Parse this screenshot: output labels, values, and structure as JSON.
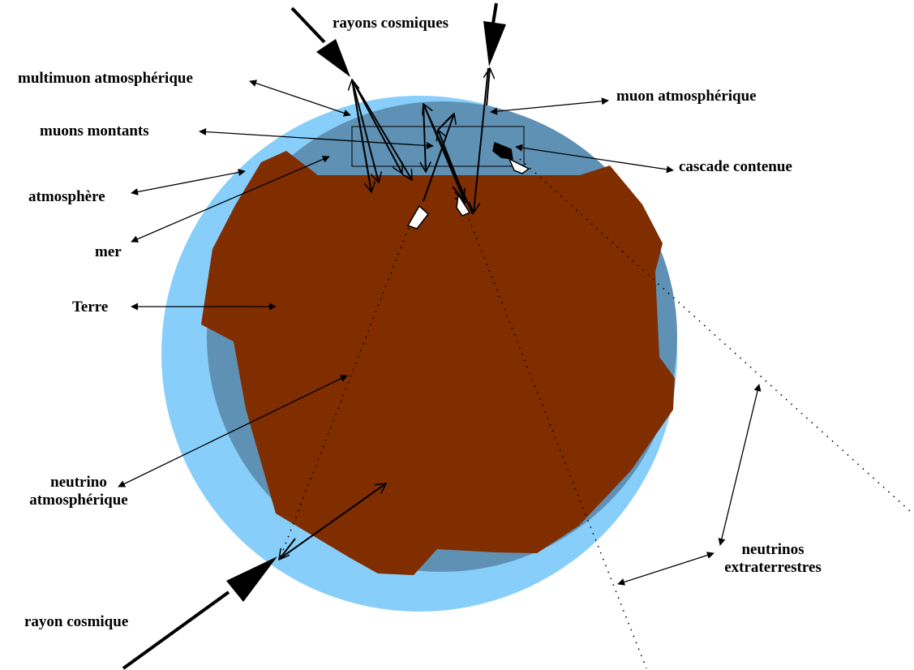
{
  "colors": {
    "atmosphere": "#87CEFA",
    "sea": "#5F91B4",
    "earth": "#802D00",
    "lines": "#000000"
  },
  "icons": [
    "arrow-icon",
    "double-arrow-icon",
    "cascade-icon"
  ],
  "labels": {
    "rayons_cosmiques": "rayons cosmiques",
    "multimuon": "multimuon atmosphérique",
    "muon_atmo": "muon atmosphérique",
    "muons_montants": "muons montants",
    "cascade": "cascade contenue",
    "atmosphere": "atmosphère",
    "mer": "mer",
    "terre": "Terre",
    "neutrino_atmo_1": "neutrino",
    "neutrino_atmo_2": "atmosphérique",
    "neutrinos_extra_1": "neutrinos",
    "neutrinos_extra_2": "extraterrestres",
    "rayon_cosmique": "rayon cosmique"
  }
}
